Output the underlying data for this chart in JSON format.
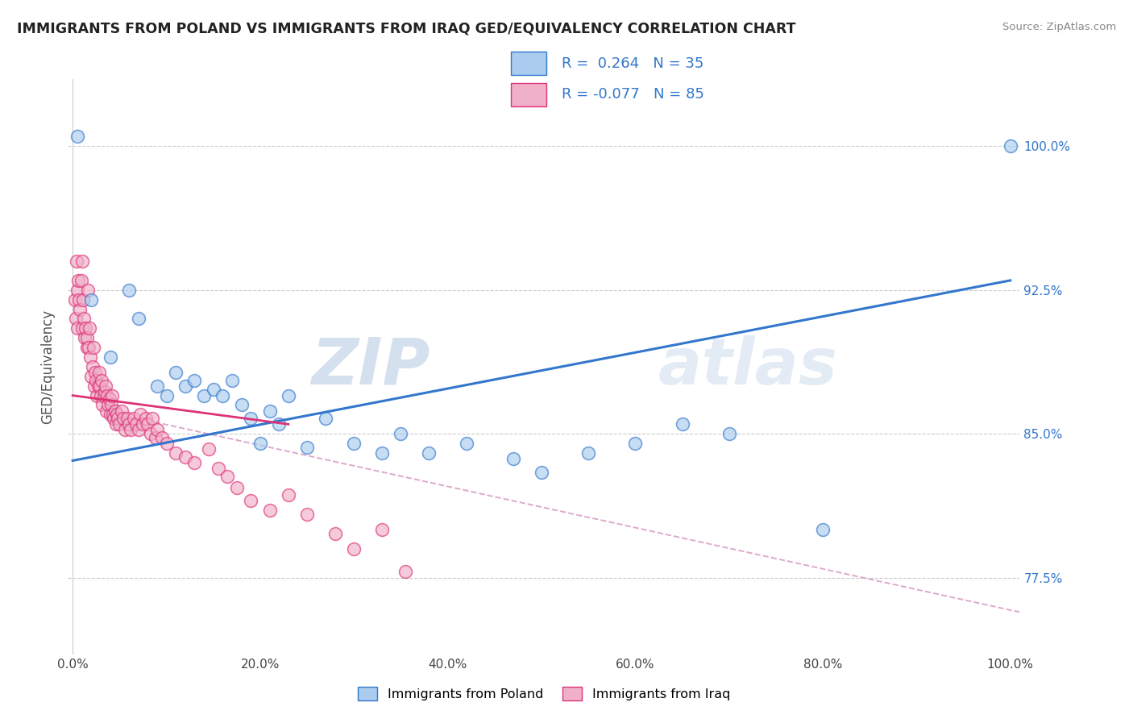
{
  "title": "IMMIGRANTS FROM POLAND VS IMMIGRANTS FROM IRAQ GED/EQUIVALENCY CORRELATION CHART",
  "source": "Source: ZipAtlas.com",
  "ylabel": "GED/Equivalency",
  "legend_label1": "Immigrants from Poland",
  "legend_label2": "Immigrants from Iraq",
  "r1": 0.264,
  "n1": 35,
  "r2": -0.077,
  "n2": 85,
  "color_poland": "#aaccee",
  "color_iraq": "#f0b0c8",
  "line_color_poland": "#3377cc",
  "line_color_iraq": "#dd3377",
  "line_color_dashed": "#ddaacc",
  "watermark_zip": "ZIP",
  "watermark_atlas": "atlas",
  "yticks": [
    0.775,
    0.85,
    0.925,
    1.0
  ],
  "ytick_labels": [
    "77.5%",
    "85.0%",
    "92.5%",
    "100.0%"
  ],
  "ymin": 0.735,
  "ymax": 1.035,
  "xmin": -0.005,
  "xmax": 1.01,
  "blue_line_x0": 0.0,
  "blue_line_y0": 0.836,
  "blue_line_x1": 1.0,
  "blue_line_y1": 0.93,
  "pink_line_x0": 0.0,
  "pink_line_y0": 0.87,
  "pink_line_x1": 0.23,
  "pink_line_y1": 0.855,
  "dashed_line_x0": 0.07,
  "dashed_line_y0": 0.858,
  "dashed_line_x1": 1.01,
  "dashed_line_y1": 0.757,
  "poland_x": [
    0.005,
    0.02,
    0.04,
    0.06,
    0.07,
    0.09,
    0.1,
    0.11,
    0.12,
    0.13,
    0.14,
    0.15,
    0.16,
    0.17,
    0.18,
    0.19,
    0.2,
    0.21,
    0.22,
    0.23,
    0.25,
    0.27,
    0.3,
    0.33,
    0.35,
    0.38,
    0.42,
    0.47,
    0.5,
    0.55,
    0.6,
    0.65,
    0.7,
    0.8,
    1.0
  ],
  "poland_y": [
    1.005,
    0.92,
    0.89,
    0.925,
    0.91,
    0.875,
    0.87,
    0.882,
    0.875,
    0.878,
    0.87,
    0.873,
    0.87,
    0.878,
    0.865,
    0.858,
    0.845,
    0.862,
    0.855,
    0.87,
    0.843,
    0.858,
    0.845,
    0.84,
    0.85,
    0.84,
    0.845,
    0.837,
    0.83,
    0.84,
    0.845,
    0.855,
    0.85,
    0.8,
    1.0
  ],
  "iraq_x": [
    0.002,
    0.003,
    0.004,
    0.005,
    0.005,
    0.006,
    0.007,
    0.008,
    0.009,
    0.01,
    0.01,
    0.011,
    0.012,
    0.013,
    0.014,
    0.015,
    0.015,
    0.016,
    0.017,
    0.018,
    0.019,
    0.02,
    0.021,
    0.022,
    0.023,
    0.024,
    0.025,
    0.026,
    0.027,
    0.028,
    0.029,
    0.03,
    0.031,
    0.032,
    0.033,
    0.034,
    0.035,
    0.036,
    0.037,
    0.038,
    0.039,
    0.04,
    0.041,
    0.042,
    0.043,
    0.044,
    0.045,
    0.046,
    0.047,
    0.048,
    0.05,
    0.052,
    0.054,
    0.056,
    0.058,
    0.06,
    0.062,
    0.065,
    0.068,
    0.07,
    0.072,
    0.075,
    0.078,
    0.08,
    0.083,
    0.085,
    0.088,
    0.09,
    0.095,
    0.1,
    0.11,
    0.12,
    0.13,
    0.145,
    0.155,
    0.165,
    0.175,
    0.19,
    0.21,
    0.23,
    0.25,
    0.28,
    0.3,
    0.33,
    0.355
  ],
  "iraq_y": [
    0.92,
    0.91,
    0.94,
    0.925,
    0.905,
    0.93,
    0.92,
    0.915,
    0.93,
    0.94,
    0.905,
    0.92,
    0.91,
    0.9,
    0.905,
    0.895,
    0.9,
    0.925,
    0.895,
    0.905,
    0.89,
    0.88,
    0.885,
    0.895,
    0.875,
    0.882,
    0.878,
    0.87,
    0.875,
    0.882,
    0.875,
    0.87,
    0.878,
    0.865,
    0.87,
    0.872,
    0.875,
    0.862,
    0.87,
    0.865,
    0.868,
    0.86,
    0.865,
    0.87,
    0.86,
    0.858,
    0.862,
    0.855,
    0.86,
    0.858,
    0.855,
    0.862,
    0.858,
    0.852,
    0.858,
    0.855,
    0.852,
    0.858,
    0.855,
    0.852,
    0.86,
    0.855,
    0.858,
    0.855,
    0.85,
    0.858,
    0.848,
    0.852,
    0.848,
    0.845,
    0.84,
    0.838,
    0.835,
    0.842,
    0.832,
    0.828,
    0.822,
    0.815,
    0.81,
    0.818,
    0.808,
    0.798,
    0.79,
    0.8,
    0.778
  ]
}
